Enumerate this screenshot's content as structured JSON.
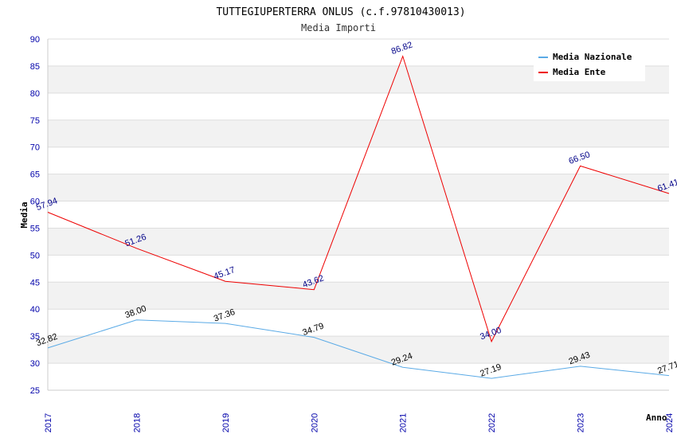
{
  "chart_data": {
    "type": "line",
    "title": "TUTTEGIUPERTERRA ONLUS (c.f.97810430013)",
    "subtitle": "Media Importi",
    "xlabel": "Anno",
    "ylabel": "Media",
    "ylim": [
      25,
      90
    ],
    "ytick_step": 5,
    "grid": true,
    "legend_position": "top-right",
    "categories": [
      "2017",
      "2018",
      "2019",
      "2020",
      "2021",
      "2022",
      "2023",
      "2024"
    ],
    "series": [
      {
        "name": "Media Nazionale",
        "color": "#5aaae6",
        "values": [
          32.82,
          38.0,
          37.36,
          34.79,
          29.24,
          27.19,
          29.43,
          27.71
        ],
        "labels": [
          "32.82",
          "38.00",
          "37.36",
          "34.79",
          "29.24",
          "27.19",
          "29.43",
          "27.71"
        ]
      },
      {
        "name": "Media Ente",
        "color": "#ee0000",
        "values": [
          57.94,
          51.26,
          45.17,
          43.62,
          86.82,
          34.0,
          66.5,
          61.41
        ],
        "labels": [
          "57.94",
          "51.26",
          "45.17",
          "43.62",
          "86.82",
          "34.00",
          "66.50",
          "61.41"
        ]
      }
    ]
  }
}
